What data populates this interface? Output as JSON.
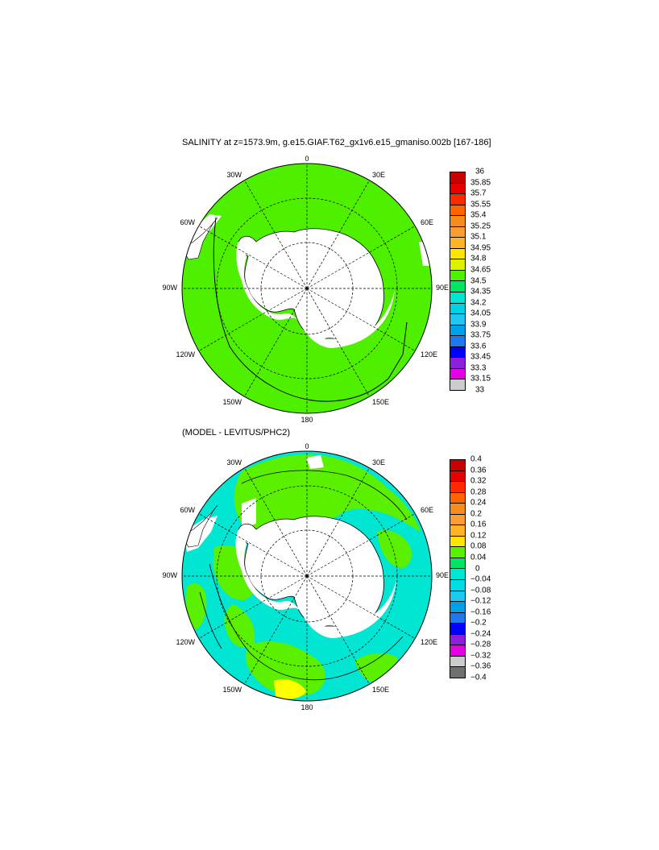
{
  "maps": [
    {
      "title": "SALINITY at z=1573.9m, g.e15.GIAF.T62_gx1v6.e15_gmaniso.002b [167-186]",
      "lon_labels": [
        "0",
        "30E",
        "60E",
        "90E",
        "120E",
        "150E",
        "180",
        "150W",
        "120W",
        "90W",
        "60W",
        "30W"
      ],
      "colorbar": {
        "ticks": [
          "36",
          "35.85",
          "35.7",
          "35.55",
          "35.4",
          "35.25",
          "35.1",
          "34.95",
          "34.8",
          "34.65",
          "34.5",
          "34.35",
          "34.2",
          "34.05",
          "33.9",
          "33.75",
          "33.6",
          "33.45",
          "33.3",
          "33.15",
          "33"
        ],
        "colors": [
          "#c80000",
          "#e60000",
          "#ff2800",
          "#ff6400",
          "#f58c1e",
          "#fa9e32",
          "#ffb428",
          "#ffe600",
          "#dcf000",
          "#4ef000",
          "#00e664",
          "#00e6d2",
          "#00d2e6",
          "#1ec8f0",
          "#00a0e6",
          "#1e78f0",
          "#0000ff",
          "#8c1edc",
          "#e600e6",
          "#cccccc"
        ]
      }
    },
    {
      "title": "(MODEL - LEVITUS/PHC2)",
      "lon_labels": [
        "0",
        "30E",
        "60E",
        "90E",
        "120E",
        "150E",
        "180",
        "150W",
        "120W",
        "90W",
        "60W",
        "30W"
      ],
      "colorbar": {
        "ticks": [
          "0.4",
          "0.36",
          "0.32",
          "0.28",
          "0.24",
          "0.2",
          "0.16",
          "0.12",
          "0.08",
          "0.04",
          "0",
          "−0.04",
          "−0.08",
          "−0.12",
          "−0.16",
          "−0.2",
          "−0.24",
          "−0.28",
          "−0.32",
          "−0.36",
          "−0.4"
        ],
        "colors": [
          "#c80000",
          "#e60000",
          "#ff2800",
          "#ff6400",
          "#f58c1e",
          "#fa9e32",
          "#ffb428",
          "#ffe600",
          "#5af000",
          "#00e664",
          "#00e6d2",
          "#00dce6",
          "#1ec8f0",
          "#00a0e6",
          "#1e78f0",
          "#0000ff",
          "#8c1edc",
          "#e600e6",
          "#cccccc",
          "#707070"
        ]
      }
    }
  ],
  "palette": {
    "land": "#ffffff",
    "outline": "#000000",
    "salinity_fill": "#4ef000",
    "diff_fill_cyan": "#00e6d2",
    "diff_fill_green": "#5af000",
    "diff_fill_yellow": "#ffff00"
  }
}
